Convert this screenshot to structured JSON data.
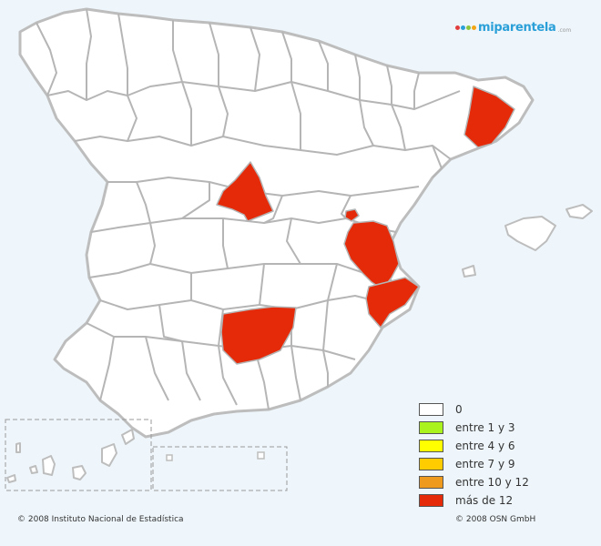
{
  "brand": {
    "logo_text": "miparentela",
    "logo_suffix": ".com",
    "logo_colors": [
      "#e23d3d",
      "#2a9fd8",
      "#8cc63f",
      "#f2a515"
    ]
  },
  "map": {
    "land_color": "#ffffff",
    "border_color": "#b5b5b5",
    "sea_color": "#eef6fb",
    "highlight_color": "#e52a0a",
    "highlighted_regions": [
      "region-madrid-area",
      "region-barcelona-area",
      "region-valencia-area",
      "region-alicante-area",
      "region-albacete-area",
      "region-castellon-islet"
    ]
  },
  "legend": {
    "items": [
      {
        "label": "0",
        "color": "#ffffff"
      },
      {
        "label": "entre 1 y 3",
        "color": "#aaf31f"
      },
      {
        "label": "entre 4 y 6",
        "color": "#ffff00"
      },
      {
        "label": "entre 7 y 9",
        "color": "#ffcc00"
      },
      {
        "label": "entre 10 y 12",
        "color": "#ee9a1e"
      },
      {
        "label": "más de 12",
        "color": "#e52a0a"
      }
    ]
  },
  "footer": {
    "left": "© 2008 Instituto Nacional de Estadística",
    "right": "© 2008 OSN GmbH"
  }
}
